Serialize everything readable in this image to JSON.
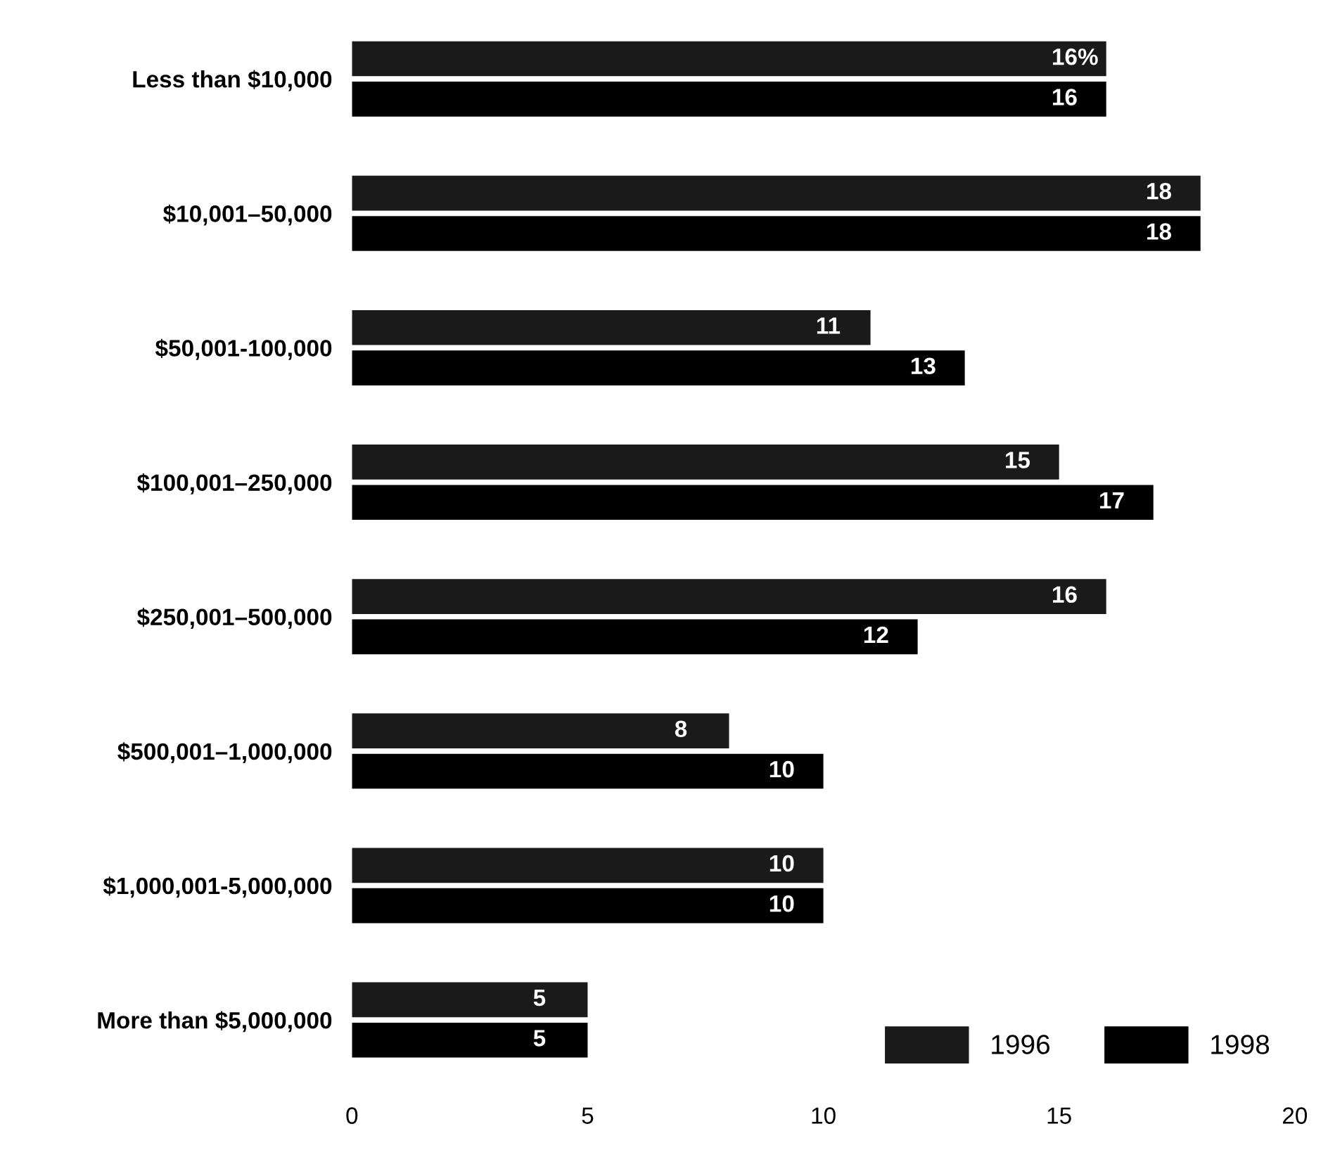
{
  "chart_data": {
    "type": "bar",
    "orientation": "horizontal",
    "categories": [
      "Less than $10,000",
      "$10,001–50,000",
      "$50,001-100,000",
      "$100,001–250,000",
      "$250,001–500,000",
      "$500,001–1,000,000",
      "$1,000,001-5,000,000",
      "More than $5,000,000"
    ],
    "series": [
      {
        "name": "1996",
        "color": "#1a1a1a",
        "values": [
          16,
          18,
          11,
          15,
          16,
          8,
          10,
          5
        ],
        "value_labels": [
          "16%",
          "18",
          "11",
          "15",
          "16",
          "8",
          "10",
          "5"
        ]
      },
      {
        "name": "1998",
        "color": "#000000",
        "values": [
          16,
          18,
          13,
          17,
          12,
          10,
          10,
          5
        ],
        "value_labels": [
          "16",
          "18",
          "13",
          "17",
          "12",
          "10",
          "10",
          "5"
        ]
      }
    ],
    "xlim": [
      0,
      20
    ],
    "xticks": [
      0,
      5,
      10,
      15,
      20
    ],
    "grid": false,
    "legend": "bottom right"
  }
}
